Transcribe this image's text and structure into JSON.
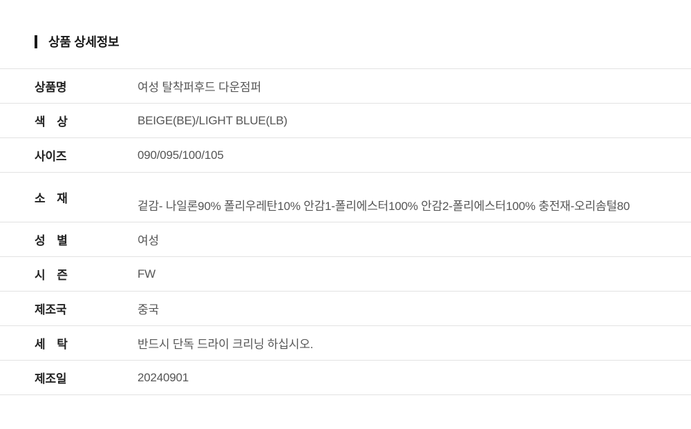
{
  "header": {
    "title": "상품 상세정보"
  },
  "table": {
    "rows": [
      {
        "label": "상품명",
        "value": "여성 탈착퍼후드 다운점퍼"
      },
      {
        "label": "색　상",
        "value": "BEIGE(BE)/LIGHT BLUE(LB)"
      },
      {
        "label": "사이즈",
        "value": "090/095/100/105"
      },
      {
        "label": "소　재",
        "value": "겉감- 나일론90% 폴리우레탄10% 안감1-폴리에스터100% 안감2-폴리에스터100% 충전재-오리솜털80"
      },
      {
        "label": "성　별",
        "value": "여성"
      },
      {
        "label": "시　즌",
        "value": "FW"
      },
      {
        "label": "제조국",
        "value": "중국"
      },
      {
        "label": "세　탁",
        "value": "반드시 단독 드라이 크리닝 하십시오."
      },
      {
        "label": "제조일",
        "value": "20240901"
      }
    ]
  },
  "colors": {
    "title": "#1a1a1a",
    "accent_bar": "#1a1a1a",
    "label_text": "#222222",
    "value_text": "#555555",
    "border": "#e2e2e2",
    "background": "#ffffff"
  }
}
